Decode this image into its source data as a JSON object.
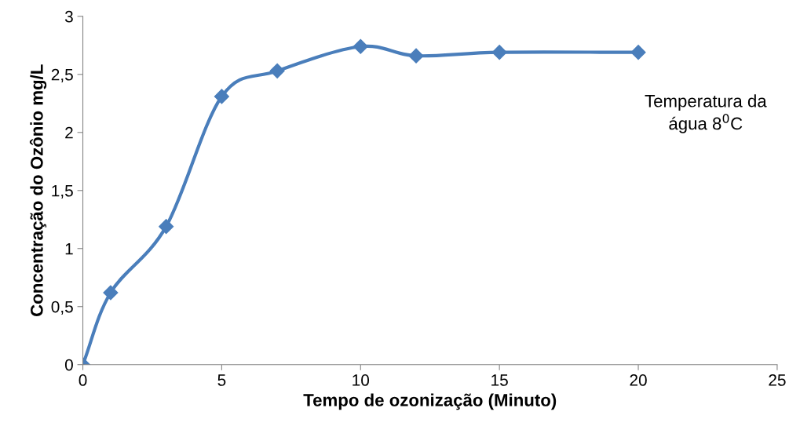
{
  "chart_data": {
    "type": "line",
    "xlabel": "Tempo de ozonização (Minuto)",
    "ylabel": "Concentração do Ozônio mg/L",
    "annotations": [
      "Temperatura da\nágua 8$^{0}$C"
    ],
    "series": [
      {
        "color": "#4a7ebb",
        "x": [
          0,
          1,
          3,
          5,
          7,
          10,
          12,
          15,
          20
        ],
        "values": [
          0,
          0.62,
          1.19,
          2.31,
          2.53,
          2.74,
          2.66,
          2.69,
          2.69
        ]
      }
    ],
    "xlim": [
      0,
      25
    ],
    "xticks": [
      0,
      5,
      10,
      15,
      20,
      25
    ],
    "ylim": [
      0,
      3
    ],
    "yticks": [
      0,
      {
        "value": 0.5,
        "label": "0,5"
      },
      1,
      {
        "value": 1.5,
        "label": "1,5"
      },
      2,
      {
        "value": 2.5,
        "label": "2,5"
      },
      3
    ],
    "marker": "diamond",
    "line_style": "solid",
    "grid": false,
    "legend": false
  }
}
